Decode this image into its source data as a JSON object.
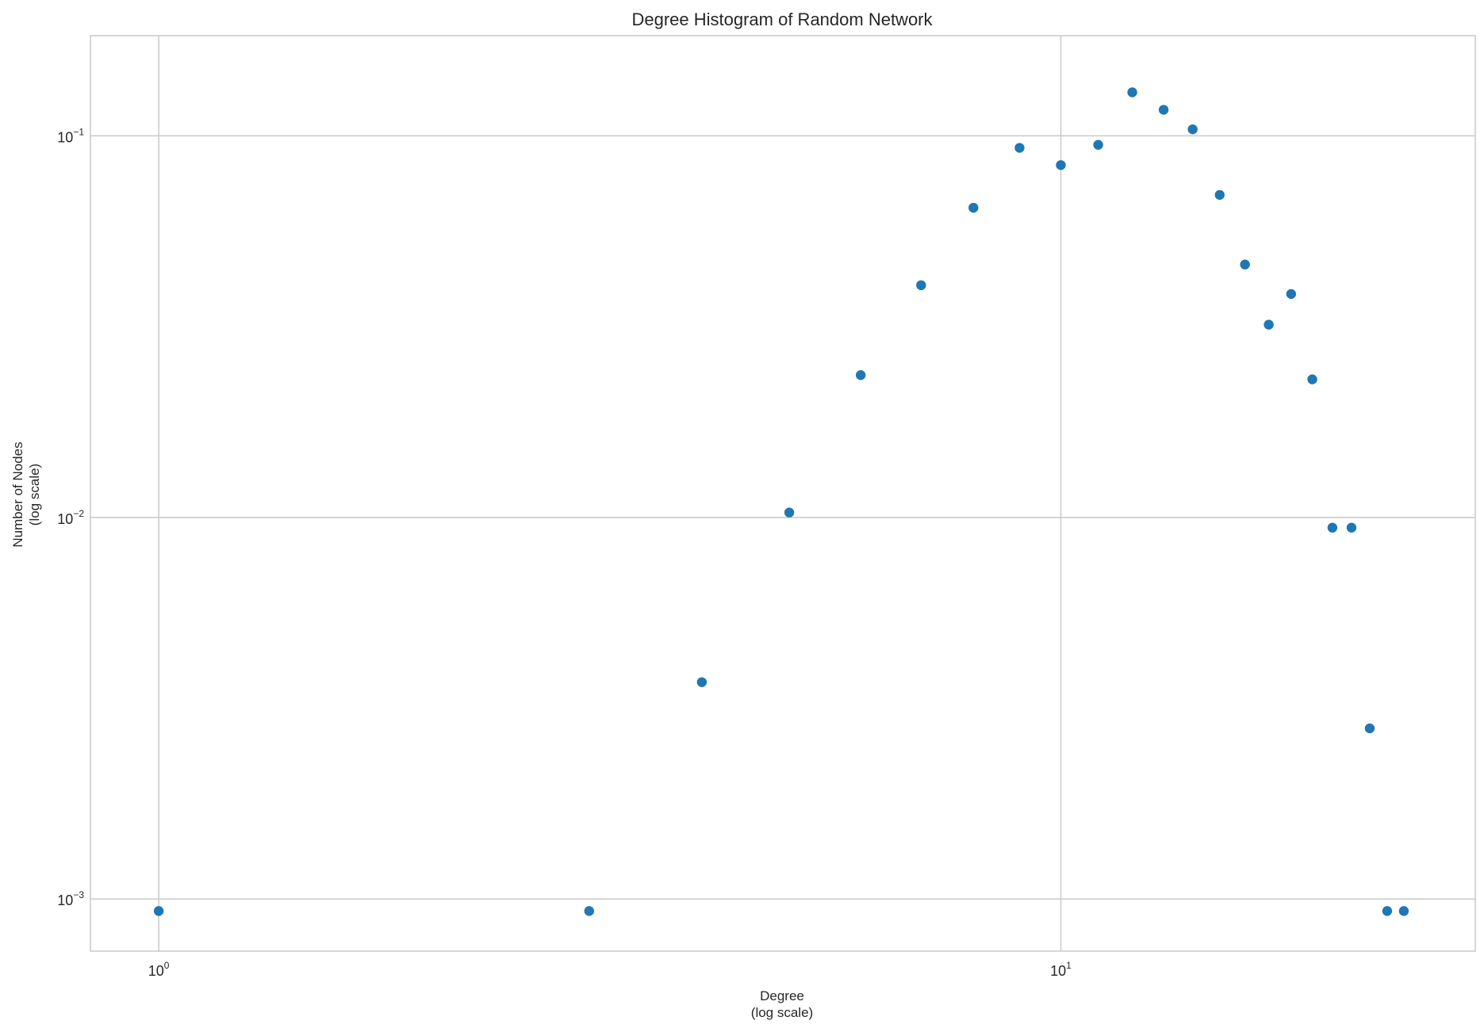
{
  "chart_data": {
    "type": "scatter",
    "title": "Degree Histogram of Random Network",
    "xlabel": [
      "Degree",
      "(log scale)"
    ],
    "ylabel": [
      "Number of Nodes",
      "(log scale)"
    ],
    "xscale": "log",
    "yscale": "log",
    "xlim": [
      0.84,
      28.8
    ],
    "ylim": [
      0.00073,
      0.183
    ],
    "grid": true,
    "x_ticks": [
      {
        "value": 1,
        "base": "10",
        "exp": "0"
      },
      {
        "value": 10,
        "base": "10",
        "exp": "1"
      }
    ],
    "y_ticks": [
      {
        "value": 0.001,
        "base": "10",
        "exp": "−3"
      },
      {
        "value": 0.01,
        "base": "10",
        "exp": "−2"
      },
      {
        "value": 0.1,
        "base": "10",
        "exp": "−1"
      }
    ],
    "marker_color": "#1f77b4",
    "points": [
      {
        "x": 1,
        "y": 0.00093
      },
      {
        "x": 3,
        "y": 0.00093
      },
      {
        "x": 4,
        "y": 0.0037
      },
      {
        "x": 5,
        "y": 0.0103
      },
      {
        "x": 6,
        "y": 0.0236
      },
      {
        "x": 7,
        "y": 0.0406
      },
      {
        "x": 8,
        "y": 0.0648
      },
      {
        "x": 9,
        "y": 0.093
      },
      {
        "x": 10,
        "y": 0.0838
      },
      {
        "x": 11,
        "y": 0.0947
      },
      {
        "x": 12,
        "y": 0.13
      },
      {
        "x": 13,
        "y": 0.117
      },
      {
        "x": 14,
        "y": 0.104
      },
      {
        "x": 15,
        "y": 0.07
      },
      {
        "x": 16,
        "y": 0.046
      },
      {
        "x": 17,
        "y": 0.032
      },
      {
        "x": 18,
        "y": 0.0385
      },
      {
        "x": 19,
        "y": 0.023
      },
      {
        "x": 20,
        "y": 0.0094
      },
      {
        "x": 21,
        "y": 0.0094
      },
      {
        "x": 22,
        "y": 0.0028
      },
      {
        "x": 23,
        "y": 0.00093
      },
      {
        "x": 24,
        "y": 0.00093
      }
    ]
  }
}
